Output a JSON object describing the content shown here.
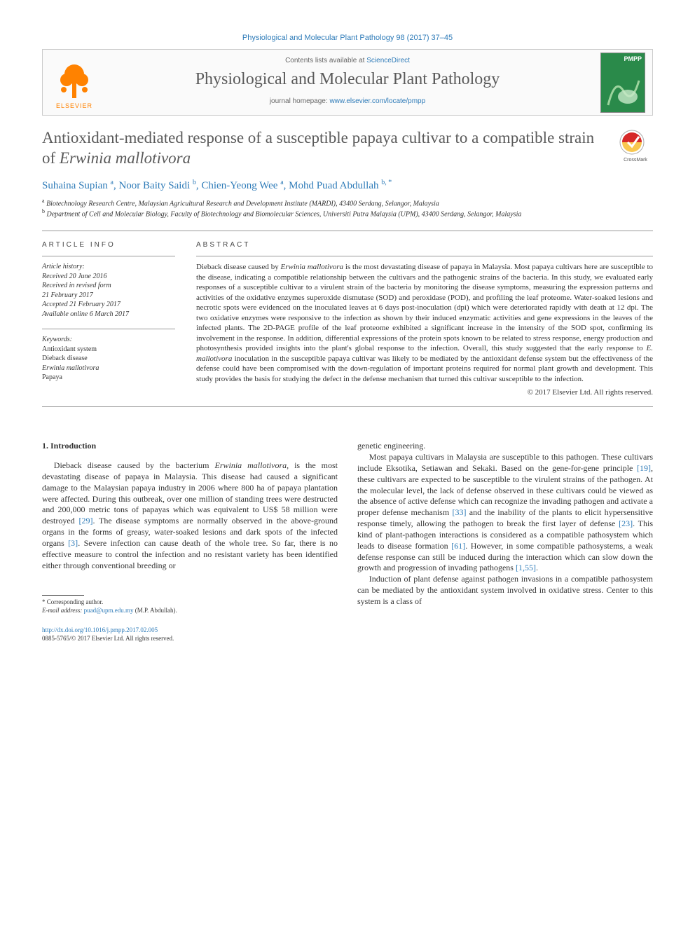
{
  "citation": "Physiological and Molecular Plant Pathology 98 (2017) 37–45",
  "contents_prefix": "Contents lists available at ",
  "contents_link": "ScienceDirect",
  "journal_name": "Physiological and Molecular Plant Pathology",
  "homepage_prefix": "journal homepage: ",
  "homepage_link": "www.elsevier.com/locate/pmpp",
  "cover_label": "PMPP",
  "crossmark_label": "CrossMark",
  "title_a": "Antioxidant-mediated response of a susceptible papaya cultivar to a compatible strain of ",
  "title_b": "Erwinia mallotivora",
  "authors_html": "Suhaina Supian <sup>a</sup>, Noor Baity Saidi <sup>b</sup>, Chien-Yeong Wee <sup>a</sup>, Mohd Puad Abdullah <sup>b, *</sup>",
  "affiliations": [
    {
      "sup": "a",
      "text": "Biotechnology Research Centre, Malaysian Agricultural Research and Development Institute (MARDI), 43400 Serdang, Selangor, Malaysia"
    },
    {
      "sup": "b",
      "text": "Department of Cell and Molecular Biology, Faculty of Biotechnology and Biomolecular Sciences, Universiti Putra Malaysia (UPM), 43400 Serdang, Selangor, Malaysia"
    }
  ],
  "info_heading": "ARTICLE INFO",
  "abstract_heading": "ABSTRACT",
  "history_label": "Article history:",
  "history": [
    "Received 20 June 2016",
    "Received in revised form",
    "21 February 2017",
    "Accepted 21 February 2017",
    "Available online 6 March 2017"
  ],
  "keywords_label": "Keywords:",
  "keywords": [
    "Antioxidant system",
    "Dieback disease",
    "<em>Erwinia mallotivora</em>",
    "Papaya"
  ],
  "abstract": "Dieback disease caused by <em>Erwinia mallotivora</em> is the most devastating disease of papaya in Malaysia. Most papaya cultivars here are susceptible to the disease, indicating a compatible relationship between the cultivars and the pathogenic strains of the bacteria. In this study, we evaluated early responses of a susceptible cultivar to a virulent strain of the bacteria by monitoring the disease symptoms, measuring the expression patterns and activities of the oxidative enzymes superoxide dismutase (SOD) and peroxidase (POD), and profiling the leaf proteome. Water-soaked lesions and necrotic spots were evidenced on the inoculated leaves at 6 days post-inoculation (dpi) which were deteriorated rapidly with death at 12 dpi. The two oxidative enzymes were responsive to the infection as shown by their induced enzymatic activities and gene expressions in the leaves of the infected plants. The 2D-PAGE profile of the leaf proteome exhibited a significant increase in the intensity of the SOD spot, confirming its involvement in the response. In addition, differential expressions of the protein spots known to be related to stress response, energy production and photosynthesis provided insights into the plant's global response to the infection. Overall, this study suggested that the early response to <em>E. mallotivora</em> inoculation in the susceptible papaya cultivar was likely to be mediated by the antioxidant defense system but the effectiveness of the defense could have been compromised with the down-regulation of important proteins required for normal plant growth and development. This study provides the basis for studying the defect in the defense mechanism that turned this cultivar susceptible to the infection.",
  "abs_copyright": "© 2017 Elsevier Ltd. All rights reserved.",
  "sec1_heading": "1. Introduction",
  "col1_p1": "Dieback disease caused by the bacterium <em>Erwinia mallotivora</em>, is the most devastating disease of papaya in Malaysia. This disease had caused a significant damage to the Malaysian papaya industry in 2006 where 800 ha of papaya plantation were affected. During this outbreak, over one million of standing trees were destructed and 200,000 metric tons of papayas which was equivalent to US$ 58 million were destroyed <span class=\"ref-link\">[29]</span>. The disease symptoms are normally observed in the above-ground organs in the forms of greasy, water-soaked lesions and dark spots of the infected organs <span class=\"ref-link\">[3]</span>. Severe infection can cause death of the whole tree. So far, there is no effective measure to control the infection and no resistant variety has been identified either through conventional breeding or",
  "col2_p0": "genetic engineering.",
  "col2_p1": "Most papaya cultivars in Malaysia are susceptible to this pathogen. These cultivars include Eksotika, Setiawan and Sekaki. Based on the gene-for-gene principle <span class=\"ref-link\">[19]</span>, these cultivars are expected to be susceptible to the virulent strains of the pathogen. At the molecular level, the lack of defense observed in these cultivars could be viewed as the absence of active defense which can recognize the invading pathogen and activate a proper defense mechanism <span class=\"ref-link\">[33]</span> and the inability of the plants to elicit hypersensitive response timely, allowing the pathogen to break the first layer of defense <span class=\"ref-link\">[23]</span>. This kind of plant-pathogen interactions is considered as a compatible pathosystem which leads to disease formation <span class=\"ref-link\">[61]</span>. However, in some compatible pathosystems, a weak defense response can still be induced during the interaction which can slow down the growth and progression of invading pathogens <span class=\"ref-link\">[1,55]</span>.",
  "col2_p2": "Induction of plant defense against pathogen invasions in a compatible pathosystem can be mediated by the antioxidant system involved in oxidative stress. Center to this system is a class of",
  "corresponding_label": "* Corresponding author.",
  "email_label_prefix": "E-mail address: ",
  "email": "puad@upm.edu.my",
  "email_suffix": " (M.P. Abdullah).",
  "doi_link": "http://dx.doi.org/10.1016/j.pmpp.2017.02.005",
  "issn_line": "0885-5765/© 2017 Elsevier Ltd. All rights reserved.",
  "colors": {
    "link": "#2e7bb8",
    "elsevier_orange": "#ff8200",
    "cover_green": "#2a8a4a",
    "title_gray": "#5a5a5a",
    "border": "#cccccc"
  }
}
